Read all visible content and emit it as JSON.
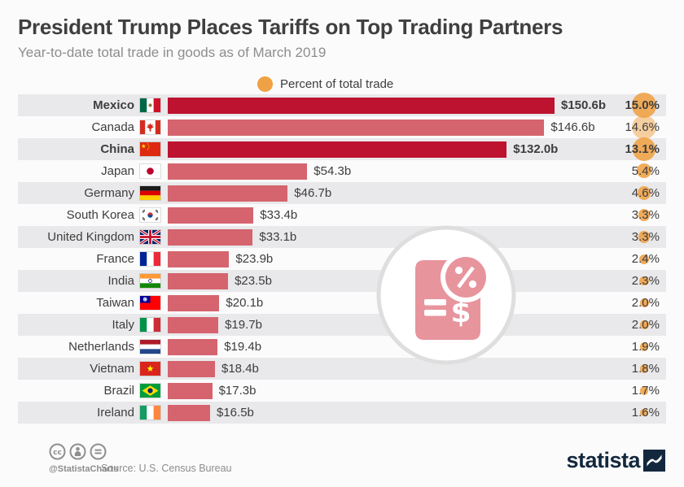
{
  "header": {
    "title": "President Trump Places Tariffs on Top Trading Partners",
    "subtitle": "Year-to-date total trade in goods as of March 2019"
  },
  "legend": {
    "label": "Percent of total trade"
  },
  "colors": {
    "bar_dark": "#bd1230",
    "bar_light": "#d5646e",
    "accent_orange": "#efa143",
    "row_alt_bg": "#e9e9eb",
    "brand_navy": "#13283d",
    "watermark_pink": "#e8949d"
  },
  "chart_data": {
    "type": "bar",
    "orientation": "horizontal",
    "title": "President Trump Places Tariffs on Top Trading Partners",
    "subtitle": "Year-to-date total trade in goods as of March 2019",
    "legend": "Percent of total trade",
    "xlim": [
      0,
      160
    ],
    "grid": false,
    "categories": [
      "Mexico",
      "Canada",
      "China",
      "Japan",
      "Germany",
      "South Korea",
      "United Kingdom",
      "France",
      "India",
      "Taiwan",
      "Italy",
      "Netherlands",
      "Vietnam",
      "Brazil",
      "Ireland"
    ],
    "series": [
      {
        "name": "Total trade in goods ($ billions)",
        "values": [
          150.6,
          146.6,
          132.0,
          54.3,
          46.7,
          33.4,
          33.1,
          23.9,
          23.5,
          20.1,
          19.7,
          19.4,
          18.4,
          17.3,
          16.5
        ]
      },
      {
        "name": "Percent of total trade (%)",
        "values": [
          15.0,
          14.6,
          13.1,
          5.4,
          4.6,
          3.3,
          3.3,
          2.4,
          2.3,
          2.0,
          2.0,
          1.9,
          1.8,
          1.7,
          1.6
        ]
      }
    ],
    "highlighted_categories": [
      "Mexico",
      "China"
    ]
  },
  "rows": [
    {
      "country": "Mexico",
      "flag": "mexico",
      "value": 150.6,
      "value_label": "$150.6b",
      "pct": 15.0,
      "pct_label": "15.0%",
      "emphasis": true,
      "circle_soft": false
    },
    {
      "country": "Canada",
      "flag": "canada",
      "value": 146.6,
      "value_label": "$146.6b",
      "pct": 14.6,
      "pct_label": "14.6%",
      "emphasis": false,
      "circle_soft": true
    },
    {
      "country": "China",
      "flag": "china",
      "value": 132.0,
      "value_label": "$132.0b",
      "pct": 13.1,
      "pct_label": "13.1%",
      "emphasis": true,
      "circle_soft": false
    },
    {
      "country": "Japan",
      "flag": "japan",
      "value": 54.3,
      "value_label": "$54.3b",
      "pct": 5.4,
      "pct_label": "5.4%",
      "emphasis": false,
      "circle_soft": false
    },
    {
      "country": "Germany",
      "flag": "germany",
      "value": 46.7,
      "value_label": "$46.7b",
      "pct": 4.6,
      "pct_label": "4.6%",
      "emphasis": false,
      "circle_soft": false
    },
    {
      "country": "South Korea",
      "flag": "south-korea",
      "value": 33.4,
      "value_label": "$33.4b",
      "pct": 3.3,
      "pct_label": "3.3%",
      "emphasis": false,
      "circle_soft": false
    },
    {
      "country": "United Kingdom",
      "flag": "uk",
      "value": 33.1,
      "value_label": "$33.1b",
      "pct": 3.3,
      "pct_label": "3.3%",
      "emphasis": false,
      "circle_soft": false
    },
    {
      "country": "France",
      "flag": "france",
      "value": 23.9,
      "value_label": "$23.9b",
      "pct": 2.4,
      "pct_label": "2.4%",
      "emphasis": false,
      "circle_soft": false
    },
    {
      "country": "India",
      "flag": "india",
      "value": 23.5,
      "value_label": "$23.5b",
      "pct": 2.3,
      "pct_label": "2.3%",
      "emphasis": false,
      "circle_soft": false
    },
    {
      "country": "Taiwan",
      "flag": "taiwan",
      "value": 20.1,
      "value_label": "$20.1b",
      "pct": 2.0,
      "pct_label": "2.0%",
      "emphasis": false,
      "circle_soft": false
    },
    {
      "country": "Italy",
      "flag": "italy",
      "value": 19.7,
      "value_label": "$19.7b",
      "pct": 2.0,
      "pct_label": "2.0%",
      "emphasis": false,
      "circle_soft": false
    },
    {
      "country": "Netherlands",
      "flag": "netherlands",
      "value": 19.4,
      "value_label": "$19.4b",
      "pct": 1.9,
      "pct_label": "1.9%",
      "emphasis": false,
      "circle_soft": false
    },
    {
      "country": "Vietnam",
      "flag": "vietnam",
      "value": 18.4,
      "value_label": "$18.4b",
      "pct": 1.8,
      "pct_label": "1.8%",
      "emphasis": false,
      "circle_soft": false
    },
    {
      "country": "Brazil",
      "flag": "brazil",
      "value": 17.3,
      "value_label": "$17.3b",
      "pct": 1.7,
      "pct_label": "1.7%",
      "emphasis": false,
      "circle_soft": false
    },
    {
      "country": "Ireland",
      "flag": "ireland",
      "value": 16.5,
      "value_label": "$16.5b",
      "pct": 1.6,
      "pct_label": "1.6%",
      "emphasis": false,
      "circle_soft": false
    }
  ],
  "footer": {
    "handle": "@StatistaCharts",
    "source": "Source: U.S. Census Bureau",
    "brand": "statista"
  }
}
